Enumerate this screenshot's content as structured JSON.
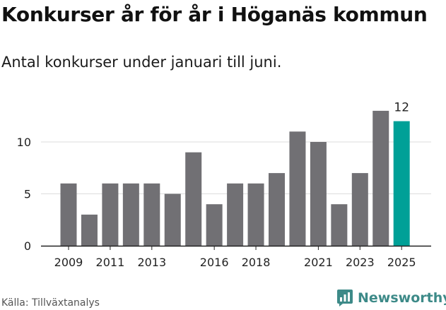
{
  "title": "Konkurser år för år i Höganäs kommun",
  "subtitle": "Antal konkurser under januari till juni.",
  "source": "Källa: Tillväxtanalys",
  "brand": {
    "name": "Newsworthy",
    "icon": "newsworthy-logo-icon",
    "color": "#3d8a88"
  },
  "colors": {
    "bar": "#717074",
    "highlight": "#00a097",
    "grid": "#dcdcdc"
  },
  "chart_data": {
    "type": "bar",
    "categories": [
      "2009",
      "2010",
      "2011",
      "2012",
      "2013",
      "2014",
      "2015",
      "2016",
      "2017",
      "2018",
      "2019",
      "2020",
      "2021",
      "2022",
      "2023",
      "2024",
      "2025"
    ],
    "values": [
      6,
      3,
      6,
      6,
      6,
      5,
      9,
      4,
      6,
      6,
      7,
      11,
      10,
      4,
      7,
      13,
      12
    ],
    "highlight_index": 16,
    "data_labels": [
      {
        "index": 16,
        "text": "12"
      }
    ],
    "x_tick_labels": [
      "2009",
      "2011",
      "2013",
      "2016",
      "2018",
      "2021",
      "2023",
      "2025"
    ],
    "y_ticks": [
      0,
      5,
      10
    ],
    "ylim": [
      0,
      14
    ],
    "grid": true,
    "xlabel": "",
    "ylabel": ""
  }
}
